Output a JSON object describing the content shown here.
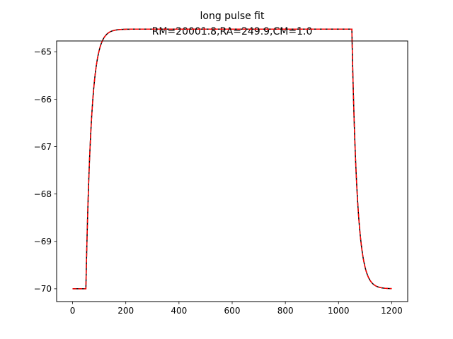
{
  "chart_data": {
    "type": "line",
    "title": "long pulse fit",
    "subtitle": "RM=20001.8,RA=249.9,CM=1.0",
    "xlabel": "",
    "ylabel": "",
    "xlim": [
      -60,
      1260
    ],
    "ylim": [
      -70.27,
      -64.77
    ],
    "xticks": [
      0,
      200,
      400,
      600,
      800,
      1000,
      1200
    ],
    "yticks": [
      -70,
      -69,
      -68,
      -67,
      -66,
      -65
    ],
    "ytick_labels": [
      "−70",
      "−69",
      "−68",
      "−67",
      "−66",
      "−65"
    ],
    "grid": false,
    "legend": "none",
    "pulse": {
      "baseline": -70.0,
      "plateau": -64.52,
      "on_time": 50,
      "off_time": 1050,
      "rise_tau": 20,
      "decay_tau": 20,
      "end_time": 1200
    },
    "series": [
      {
        "style": "solid",
        "color": "#000000"
      },
      {
        "style": "dashed",
        "color": "#ff0000"
      }
    ]
  }
}
